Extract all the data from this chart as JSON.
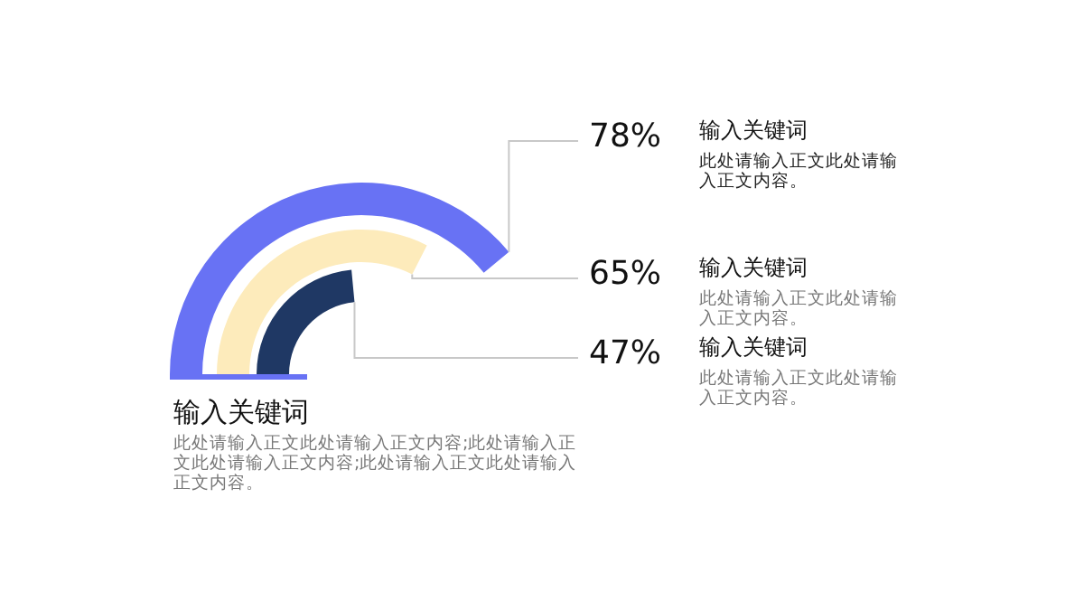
{
  "chart_data": {
    "type": "other",
    "title": "输入关键词",
    "subtitle": "此处请输入正文此处请输入正文内容;此处请输入正文此处请输入正文内容;此处请输入正文此处请输入正文内容。",
    "categories": [
      null,
      null,
      null
    ],
    "values": [
      78,
      65,
      47
    ],
    "value_labels": [
      "78%",
      "65%",
      "47%"
    ],
    "colors": [
      "#6872f4",
      "#fdebbb",
      "#1f3864"
    ],
    "annotations": [
      "输入关键词",
      "此处请输入正文此处请输入正文内容。",
      "输入关键词",
      "此处请输入正文此处请输入正文内容。",
      "输入关键词",
      "此处请输入正文此处请输入正文内容。"
    ]
  }
}
